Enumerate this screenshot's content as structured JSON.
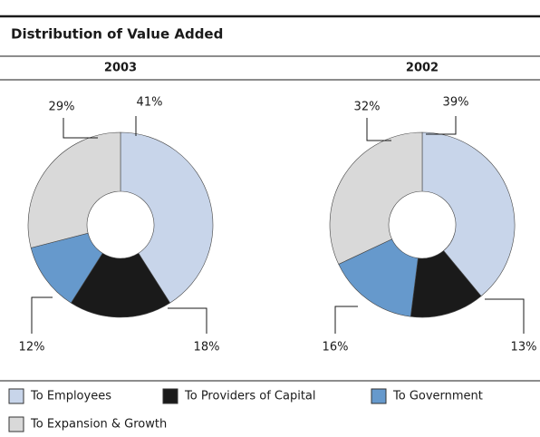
{
  "title": "Distribution of Value Added",
  "chart_data": [
    {
      "type": "pie",
      "title": "2003",
      "categories": [
        "To Employees",
        "To Providers of Capital",
        "To Government",
        "To Expansion & Growth"
      ],
      "values": [
        41,
        18,
        12,
        29
      ],
      "value_labels": [
        "41%",
        "18%",
        "12%",
        "29%"
      ],
      "colors": [
        "#c8d5ea",
        "#1a1a1a",
        "#6699cc",
        "#d9d9d9"
      ]
    },
    {
      "type": "pie",
      "title": "2002",
      "categories": [
        "To Employees",
        "To Providers of Capital",
        "To Government",
        "To Expansion & Growth"
      ],
      "values": [
        39,
        13,
        16,
        32
      ],
      "value_labels": [
        "39%",
        "13%",
        "16%",
        "32%"
      ],
      "colors": [
        "#c8d5ea",
        "#1a1a1a",
        "#6699cc",
        "#d9d9d9"
      ]
    }
  ]
}
